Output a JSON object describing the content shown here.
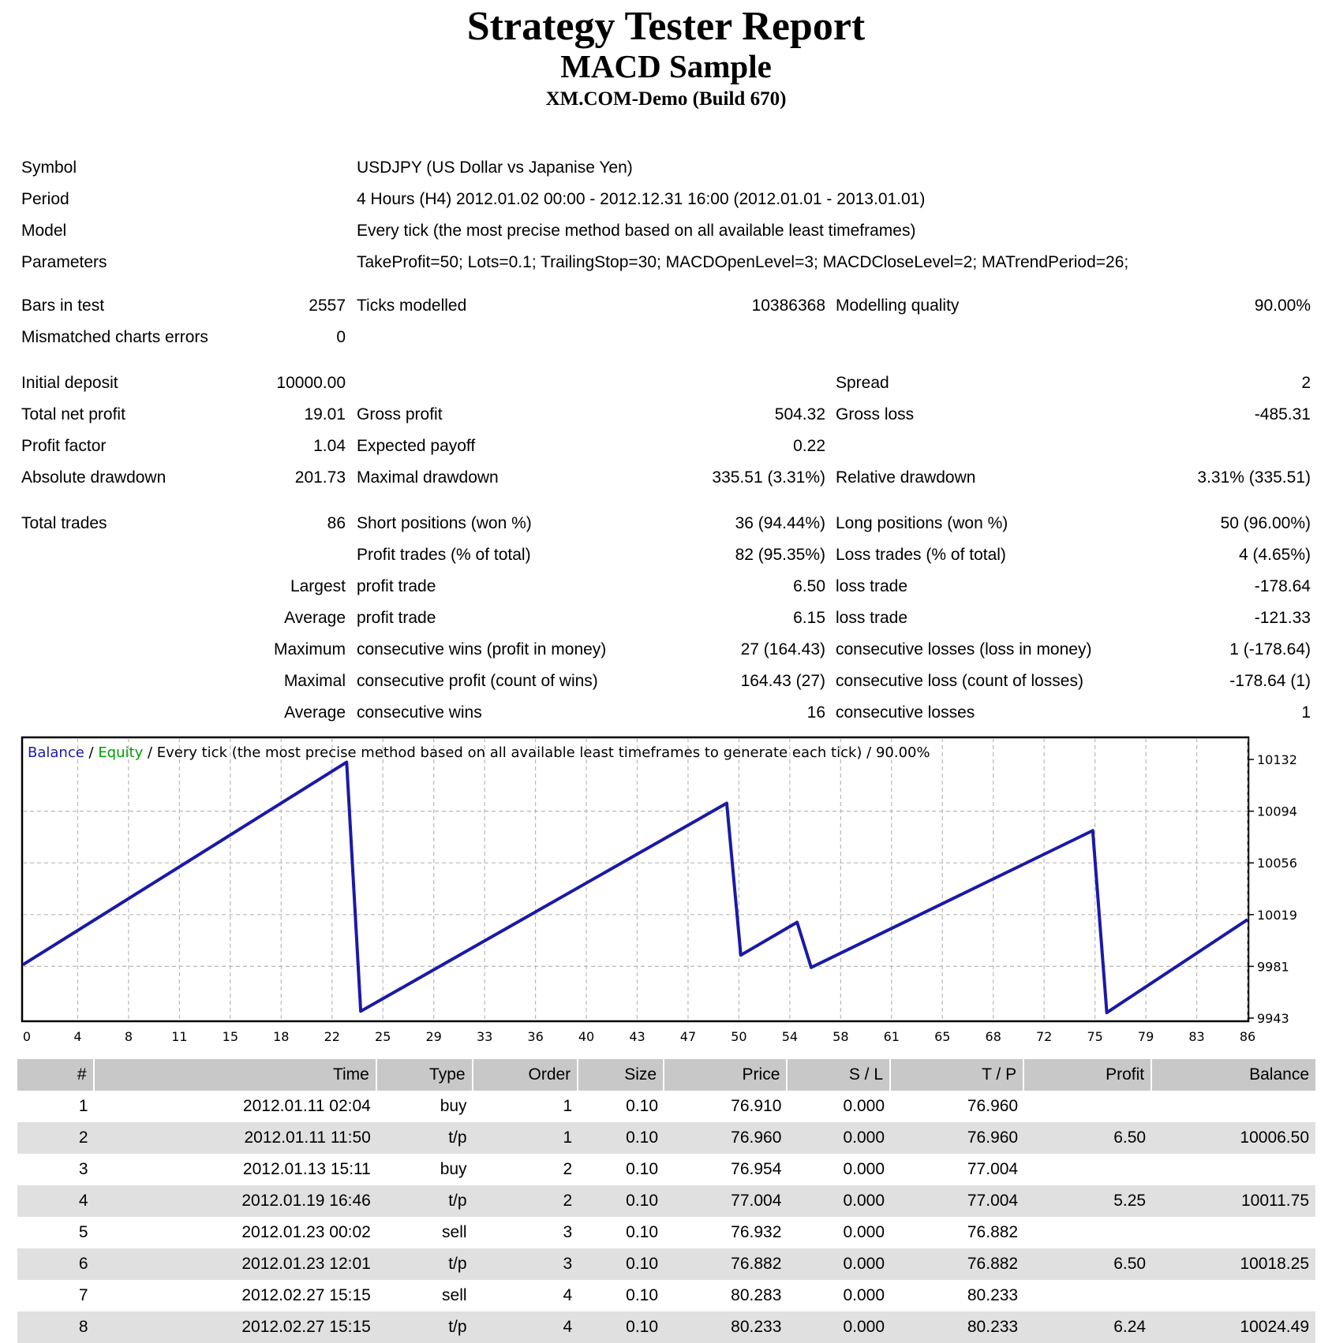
{
  "title": "Strategy Tester Report",
  "expert": "MACD Sample",
  "server": "XM.COM-Demo (Build 670)",
  "info": {
    "symbol_label": "Symbol",
    "symbol": "USDJPY (US Dollar vs Japanise Yen)",
    "period_label": "Period",
    "period": "4 Hours (H4) 2012.01.02 00:00 - 2012.12.31 16:00 (2012.01.01 - 2013.01.01)",
    "model_label": "Model",
    "model": "Every tick (the most precise method based on all available least timeframes)",
    "parameters_label": "Parameters",
    "parameters": "TakeProfit=50; Lots=0.1; TrailingStop=30; MACDOpenLevel=3; MACDCloseLevel=2; MATrendPeriod=26;"
  },
  "stats": {
    "bars_label": "Bars in test",
    "bars": "2557",
    "ticks_label": "Ticks modelled",
    "ticks": "10386368",
    "quality_label": "Modelling quality",
    "quality": "90.00%",
    "mismatch_label": "Mismatched charts errors",
    "mismatch": "0",
    "deposit_label": "Initial deposit",
    "deposit": "10000.00",
    "spread_label": "Spread",
    "spread": "2",
    "net_label": "Total net profit",
    "net": "19.01",
    "gross_profit_label": "Gross profit",
    "gross_profit": "504.32",
    "gross_loss_label": "Gross loss",
    "gross_loss": "-485.31",
    "pf_label": "Profit factor",
    "pf": "1.04",
    "payoff_label": "Expected payoff",
    "payoff": "0.22",
    "abs_dd_label": "Absolute drawdown",
    "abs_dd": "201.73",
    "max_dd_label": "Maximal drawdown",
    "max_dd": "335.51 (3.31%)",
    "rel_dd_label": "Relative drawdown",
    "rel_dd": "3.31% (335.51)",
    "trades_label": "Total trades",
    "trades": "86",
    "short_label": "Short positions (won %)",
    "short": "36 (94.44%)",
    "long_label": "Long positions (won %)",
    "long": "50 (96.00%)",
    "profit_trades_label": "Profit trades (% of total)",
    "profit_trades": "82 (95.35%)",
    "loss_trades_label": "Loss trades (% of total)",
    "loss_trades": "4 (4.65%)",
    "largest_label": "Largest",
    "largest_profit_label": "profit trade",
    "largest_profit": "6.50",
    "largest_loss_label": "loss trade",
    "largest_loss": "-178.64",
    "average_label": "Average",
    "avg_profit_label": "profit trade",
    "avg_profit": "6.15",
    "avg_loss_label": "loss trade",
    "avg_loss": "-121.33",
    "maximum_label": "Maximum",
    "max_wins_label": "consecutive wins (profit in money)",
    "max_wins": "27 (164.43)",
    "max_losses_label": "consecutive losses (loss in money)",
    "max_losses": "1 (-178.64)",
    "maximal_label": "Maximal",
    "cons_profit_label": "consecutive profit (count of wins)",
    "cons_profit": "164.43 (27)",
    "cons_loss_label": "consecutive loss (count of losses)",
    "cons_loss": "-178.64 (1)",
    "average2_label": "Average",
    "avg_wins_label": "consecutive wins",
    "avg_wins": "16",
    "avg_losses_label": "consecutive losses",
    "avg_losses": "1"
  },
  "chart_legend": {
    "balance": "Balance",
    "sep1": " / ",
    "equity": "Equity",
    "rest": " / Every tick (the most precise method based on all available least timeframes to generate each tick) / 90.00%"
  },
  "colors": {
    "balance": "#1a1aa6",
    "equity": "#00a000",
    "header_row": "#c8c8c8",
    "alt_row": "#e0e0e0"
  },
  "chart_data": {
    "type": "line",
    "series": [
      {
        "name": "Balance",
        "x": [
          0,
          23,
          24,
          50,
          51,
          55,
          56,
          76,
          77,
          87
        ],
        "y": [
          9982,
          10130,
          9948,
          10100,
          9989,
          10013,
          9980,
          10080,
          9947,
          10015
        ]
      }
    ],
    "xlim": [
      0,
      87
    ],
    "ylim": [
      9943,
      10132
    ],
    "y_ticks": [
      "10132",
      "10094",
      "10056",
      "10019",
      "9981",
      "9943"
    ],
    "x_ticks": [
      "0",
      "4",
      "8",
      "11",
      "15",
      "18",
      "22",
      "25",
      "29",
      "33",
      "36",
      "40",
      "43",
      "47",
      "50",
      "54",
      "58",
      "61",
      "65",
      "68",
      "72",
      "75",
      "79",
      "83",
      "86"
    ],
    "grid": true
  },
  "table": {
    "headers": [
      "#",
      "Time",
      "Type",
      "Order",
      "Size",
      "Price",
      "S / L",
      "T / P",
      "Profit",
      "Balance"
    ],
    "rows": [
      [
        "1",
        "2012.01.11 02:04",
        "buy",
        "1",
        "0.10",
        "76.910",
        "0.000",
        "76.960",
        "",
        ""
      ],
      [
        "2",
        "2012.01.11 11:50",
        "t/p",
        "1",
        "0.10",
        "76.960",
        "0.000",
        "76.960",
        "6.50",
        "10006.50"
      ],
      [
        "3",
        "2012.01.13 15:11",
        "buy",
        "2",
        "0.10",
        "76.954",
        "0.000",
        "77.004",
        "",
        ""
      ],
      [
        "4",
        "2012.01.19 16:46",
        "t/p",
        "2",
        "0.10",
        "77.004",
        "0.000",
        "77.004",
        "5.25",
        "10011.75"
      ],
      [
        "5",
        "2012.01.23 00:02",
        "sell",
        "3",
        "0.10",
        "76.932",
        "0.000",
        "76.882",
        "",
        ""
      ],
      [
        "6",
        "2012.01.23 12:01",
        "t/p",
        "3",
        "0.10",
        "76.882",
        "0.000",
        "76.882",
        "6.50",
        "10018.25"
      ],
      [
        "7",
        "2012.02.27 15:15",
        "sell",
        "4",
        "0.10",
        "80.283",
        "0.000",
        "80.233",
        "",
        ""
      ],
      [
        "8",
        "2012.02.27 15:15",
        "t/p",
        "4",
        "0.10",
        "80.233",
        "0.000",
        "80.233",
        "6.24",
        "10024.49"
      ]
    ]
  }
}
